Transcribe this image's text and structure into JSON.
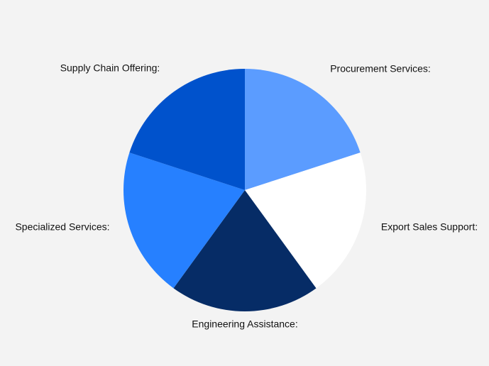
{
  "chart_data": {
    "type": "pie",
    "categories": [
      "Procurement Services:",
      "Export Sales Support:",
      "Engineering Assistance:",
      "Specialized Services:",
      "Supply Chain Offering:"
    ],
    "values": [
      20,
      20,
      20,
      20,
      20
    ],
    "colors": [
      "#5b9cff",
      "#ffffff",
      "#062c66",
      "#2680ff",
      "#0052cc"
    ]
  }
}
